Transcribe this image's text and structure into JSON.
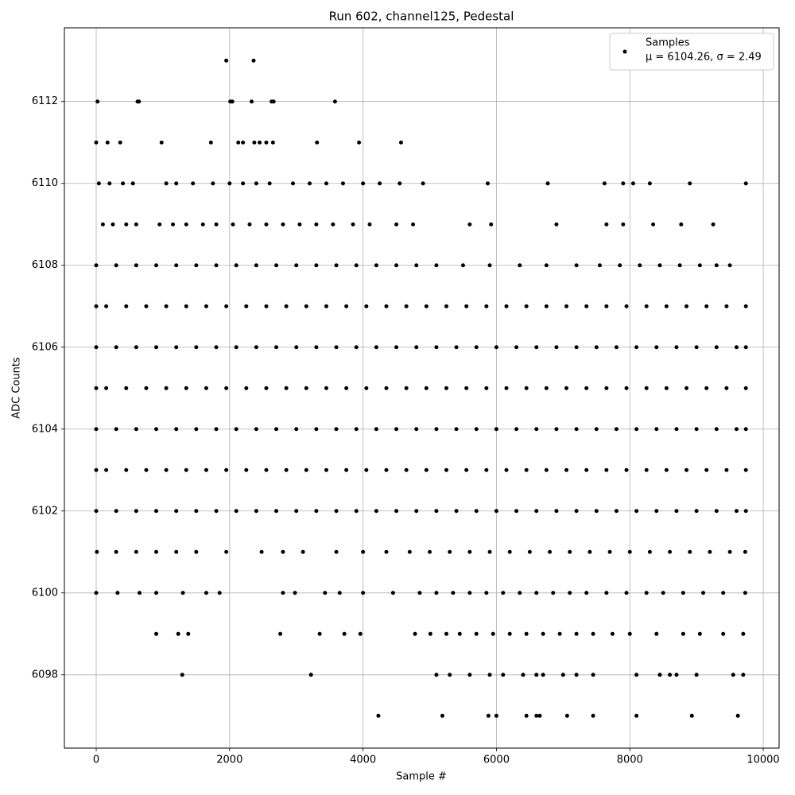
{
  "chart_data": {
    "type": "scatter",
    "title": "Run 602, channel125, Pedestal",
    "x_label": "Sample #",
    "y_label": "ADC Counts",
    "legend_note": "μ = 6104.26, σ = 2.49",
    "legend": "upper right",
    "grid": true,
    "xlim": [
      -477,
      10238
    ],
    "ylim": [
      6096.21,
      6113.8
    ],
    "xticks": [
      0,
      2000,
      4000,
      6000,
      8000,
      10000
    ],
    "yticks": [
      6098,
      6100,
      6102,
      6104,
      6106,
      6108,
      6110,
      6112
    ],
    "series": [
      {
        "name": "Samples",
        "color": "#000000",
        "x": [
          1950,
          2360,
          20,
          620,
          640,
          2010,
          2040,
          2330,
          2630,
          2660,
          3580,
          0,
          170,
          360,
          980,
          1720,
          2130,
          2200,
          2370,
          2450,
          2550,
          2650,
          3310,
          3940,
          4570,
          40,
          200,
          400,
          550,
          1050,
          1200,
          1450,
          1750,
          2000,
          2200,
          2400,
          2600,
          2950,
          3200,
          3450,
          3700,
          4000,
          4250,
          4550,
          4900,
          5870,
          6770,
          7620,
          7900,
          8050,
          8300,
          8900,
          9740,
          100,
          250,
          450,
          600,
          950,
          1150,
          1350,
          1600,
          1800,
          2050,
          2300,
          2550,
          2800,
          3050,
          3300,
          3550,
          3850,
          4100,
          4500,
          4750,
          5600,
          5920,
          6900,
          7650,
          7900,
          8350,
          8770,
          9250,
          0,
          300,
          600,
          900,
          1200,
          1500,
          1800,
          2100,
          2400,
          2700,
          3000,
          3300,
          3600,
          3900,
          4200,
          4500,
          4800,
          5100,
          5500,
          5900,
          6350,
          6750,
          7200,
          7550,
          7850,
          8150,
          8450,
          8750,
          9050,
          9300,
          9500,
          0,
          150,
          450,
          750,
          1050,
          1350,
          1650,
          1950,
          2250,
          2550,
          2850,
          3150,
          3450,
          3750,
          4050,
          4350,
          4650,
          4950,
          5250,
          5550,
          5850,
          6150,
          6450,
          6750,
          7050,
          7350,
          7650,
          7950,
          8250,
          8550,
          8850,
          9150,
          9450,
          9740,
          0,
          300,
          600,
          900,
          1200,
          1500,
          1800,
          2100,
          2400,
          2700,
          3000,
          3300,
          3600,
          3900,
          4200,
          4500,
          4800,
          5100,
          5400,
          5700,
          6000,
          6300,
          6600,
          6900,
          7200,
          7500,
          7800,
          8100,
          8400,
          8700,
          9000,
          9300,
          9600,
          9740,
          0,
          150,
          450,
          750,
          1050,
          1350,
          1650,
          1950,
          2250,
          2550,
          2850,
          3150,
          3450,
          3750,
          4050,
          4350,
          4650,
          4950,
          5250,
          5550,
          5850,
          6150,
          6450,
          6750,
          7050,
          7350,
          7650,
          7950,
          8250,
          8550,
          8850,
          9150,
          9450,
          9740,
          0,
          300,
          600,
          900,
          1200,
          1500,
          1800,
          2100,
          2400,
          2700,
          3000,
          3300,
          3600,
          3900,
          4200,
          4500,
          4800,
          5100,
          5400,
          5700,
          6000,
          6300,
          6600,
          6900,
          7200,
          7500,
          7800,
          8100,
          8400,
          8700,
          9000,
          9300,
          9600,
          9740,
          0,
          150,
          450,
          750,
          1050,
          1350,
          1650,
          1950,
          2250,
          2550,
          2850,
          3150,
          3450,
          3750,
          4050,
          4350,
          4650,
          4950,
          5250,
          5550,
          5850,
          6150,
          6450,
          6750,
          7050,
          7350,
          7650,
          7950,
          8250,
          8550,
          8850,
          9150,
          9450,
          9740,
          0,
          300,
          600,
          900,
          1200,
          1500,
          1800,
          2100,
          2400,
          2700,
          3000,
          3300,
          3600,
          3900,
          4200,
          4500,
          4800,
          5100,
          5400,
          5700,
          6000,
          6300,
          6600,
          6900,
          7200,
          7500,
          7800,
          8100,
          8400,
          8700,
          9000,
          9300,
          9600,
          9740,
          10,
          300,
          600,
          900,
          1200,
          1500,
          1950,
          2480,
          2800,
          3100,
          3600,
          4000,
          4350,
          4700,
          5000,
          5300,
          5600,
          5900,
          6200,
          6500,
          6800,
          7100,
          7400,
          7700,
          8000,
          8300,
          8600,
          8900,
          9200,
          9500,
          9730,
          0,
          320,
          650,
          900,
          1300,
          1650,
          1850,
          2800,
          2980,
          3430,
          3650,
          4000,
          4450,
          4850,
          5100,
          5350,
          5600,
          5850,
          6100,
          6350,
          6600,
          6850,
          7100,
          7350,
          7650,
          7950,
          8250,
          8500,
          8800,
          9100,
          9400,
          9730,
          900,
          1230,
          1380,
          2760,
          3350,
          3720,
          3960,
          4780,
          5010,
          5250,
          5450,
          5700,
          5950,
          6200,
          6450,
          6700,
          6950,
          7200,
          7450,
          7740,
          8000,
          8400,
          8800,
          9050,
          9400,
          9700,
          1290,
          3220,
          5100,
          5300,
          5600,
          5900,
          6100,
          6400,
          6600,
          6700,
          7000,
          7200,
          7450,
          8100,
          8450,
          8600,
          8700,
          9000,
          9550,
          9700,
          4230,
          5190,
          5880,
          6000,
          6450,
          6600,
          6650,
          7060,
          7450,
          8100,
          8930,
          9620
        ],
        "values": [
          6113,
          6113,
          6112,
          6112,
          6112,
          6112,
          6112,
          6112,
          6112,
          6112,
          6112,
          6111,
          6111,
          6111,
          6111,
          6111,
          6111,
          6111,
          6111,
          6111,
          6111,
          6111,
          6111,
          6111,
          6111,
          6110,
          6110,
          6110,
          6110,
          6110,
          6110,
          6110,
          6110,
          6110,
          6110,
          6110,
          6110,
          6110,
          6110,
          6110,
          6110,
          6110,
          6110,
          6110,
          6110,
          6110,
          6110,
          6110,
          6110,
          6110,
          6110,
          6110,
          6110,
          6109,
          6109,
          6109,
          6109,
          6109,
          6109,
          6109,
          6109,
          6109,
          6109,
          6109,
          6109,
          6109,
          6109,
          6109,
          6109,
          6109,
          6109,
          6109,
          6109,
          6109,
          6109,
          6109,
          6109,
          6109,
          6109,
          6109,
          6109,
          6108,
          6108,
          6108,
          6108,
          6108,
          6108,
          6108,
          6108,
          6108,
          6108,
          6108,
          6108,
          6108,
          6108,
          6108,
          6108,
          6108,
          6108,
          6108,
          6108,
          6108,
          6108,
          6108,
          6108,
          6108,
          6108,
          6108,
          6108,
          6108,
          6108,
          6108,
          6107,
          6107,
          6107,
          6107,
          6107,
          6107,
          6107,
          6107,
          6107,
          6107,
          6107,
          6107,
          6107,
          6107,
          6107,
          6107,
          6107,
          6107,
          6107,
          6107,
          6107,
          6107,
          6107,
          6107,
          6107,
          6107,
          6107,
          6107,
          6107,
          6107,
          6107,
          6107,
          6107,
          6107,
          6106,
          6106,
          6106,
          6106,
          6106,
          6106,
          6106,
          6106,
          6106,
          6106,
          6106,
          6106,
          6106,
          6106,
          6106,
          6106,
          6106,
          6106,
          6106,
          6106,
          6106,
          6106,
          6106,
          6106,
          6106,
          6106,
          6106,
          6106,
          6106,
          6106,
          6106,
          6106,
          6106,
          6106,
          6105,
          6105,
          6105,
          6105,
          6105,
          6105,
          6105,
          6105,
          6105,
          6105,
          6105,
          6105,
          6105,
          6105,
          6105,
          6105,
          6105,
          6105,
          6105,
          6105,
          6105,
          6105,
          6105,
          6105,
          6105,
          6105,
          6105,
          6105,
          6105,
          6105,
          6105,
          6105,
          6105,
          6105,
          6104,
          6104,
          6104,
          6104,
          6104,
          6104,
          6104,
          6104,
          6104,
          6104,
          6104,
          6104,
          6104,
          6104,
          6104,
          6104,
          6104,
          6104,
          6104,
          6104,
          6104,
          6104,
          6104,
          6104,
          6104,
          6104,
          6104,
          6104,
          6104,
          6104,
          6104,
          6104,
          6104,
          6104,
          6103,
          6103,
          6103,
          6103,
          6103,
          6103,
          6103,
          6103,
          6103,
          6103,
          6103,
          6103,
          6103,
          6103,
          6103,
          6103,
          6103,
          6103,
          6103,
          6103,
          6103,
          6103,
          6103,
          6103,
          6103,
          6103,
          6103,
          6103,
          6103,
          6103,
          6103,
          6103,
          6103,
          6103,
          6102,
          6102,
          6102,
          6102,
          6102,
          6102,
          6102,
          6102,
          6102,
          6102,
          6102,
          6102,
          6102,
          6102,
          6102,
          6102,
          6102,
          6102,
          6102,
          6102,
          6102,
          6102,
          6102,
          6102,
          6102,
          6102,
          6102,
          6102,
          6102,
          6102,
          6102,
          6102,
          6102,
          6102,
          6101,
          6101,
          6101,
          6101,
          6101,
          6101,
          6101,
          6101,
          6101,
          6101,
          6101,
          6101,
          6101,
          6101,
          6101,
          6101,
          6101,
          6101,
          6101,
          6101,
          6101,
          6101,
          6101,
          6101,
          6101,
          6101,
          6101,
          6101,
          6101,
          6101,
          6101,
          6100,
          6100,
          6100,
          6100,
          6100,
          6100,
          6100,
          6100,
          6100,
          6100,
          6100,
          6100,
          6100,
          6100,
          6100,
          6100,
          6100,
          6100,
          6100,
          6100,
          6100,
          6100,
          6100,
          6100,
          6100,
          6100,
          6100,
          6100,
          6100,
          6100,
          6100,
          6100,
          6099,
          6099,
          6099,
          6099,
          6099,
          6099,
          6099,
          6099,
          6099,
          6099,
          6099,
          6099,
          6099,
          6099,
          6099,
          6099,
          6099,
          6099,
          6099,
          6099,
          6099,
          6099,
          6099,
          6099,
          6099,
          6099,
          6098,
          6098,
          6098,
          6098,
          6098,
          6098,
          6098,
          6098,
          6098,
          6098,
          6098,
          6098,
          6098,
          6098,
          6098,
          6098,
          6098,
          6098,
          6098,
          6098,
          6097,
          6097,
          6097,
          6097,
          6097,
          6097,
          6097,
          6097,
          6097,
          6097,
          6097,
          6097
        ]
      }
    ]
  }
}
